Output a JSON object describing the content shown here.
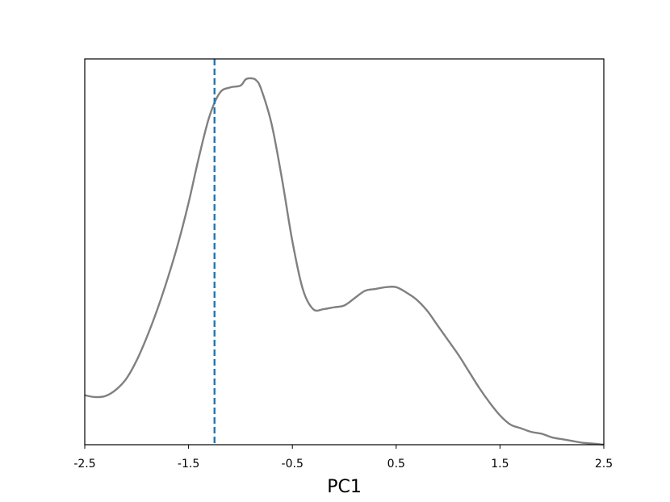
{
  "chart_data": {
    "type": "line",
    "title": "",
    "xlabel": "PC1",
    "ylabel": "",
    "xlim": [
      -2.5,
      2.5
    ],
    "ylim": [
      0,
      1.0
    ],
    "x_ticks": [
      -2.5,
      -1.5,
      -0.5,
      0.5,
      1.5,
      2.5
    ],
    "x_tick_labels": [
      "-2.5",
      "-1.5",
      "-0.5",
      "0.5",
      "1.5",
      "2.5"
    ],
    "y_ticks_visible": false,
    "grid": false,
    "series": [
      {
        "color": "#808080",
        "style": "solid",
        "x": [
          -2.5,
          -2.4,
          -2.3,
          -2.2,
          -2.1,
          -2.0,
          -1.9,
          -1.8,
          -1.7,
          -1.6,
          -1.5,
          -1.4,
          -1.3,
          -1.2,
          -1.1,
          -1.0,
          -0.95,
          -0.9,
          -0.85,
          -0.8,
          -0.7,
          -0.6,
          -0.5,
          -0.4,
          -0.3,
          -0.2,
          -0.1,
          0.0,
          0.1,
          0.2,
          0.3,
          0.4,
          0.5,
          0.6,
          0.7,
          0.8,
          0.9,
          1.0,
          1.1,
          1.2,
          1.3,
          1.4,
          1.5,
          1.6,
          1.7,
          1.8,
          1.9,
          2.0,
          2.1,
          2.2,
          2.3,
          2.4,
          2.5
        ],
        "y": [
          0.135,
          0.13,
          0.133,
          0.15,
          0.18,
          0.23,
          0.295,
          0.37,
          0.455,
          0.55,
          0.66,
          0.785,
          0.895,
          0.96,
          0.975,
          0.98,
          0.997,
          1.0,
          0.995,
          0.97,
          0.875,
          0.725,
          0.555,
          0.425,
          0.37,
          0.37,
          0.375,
          0.38,
          0.4,
          0.42,
          0.425,
          0.43,
          0.43,
          0.415,
          0.395,
          0.365,
          0.325,
          0.285,
          0.245,
          0.2,
          0.155,
          0.115,
          0.08,
          0.055,
          0.045,
          0.035,
          0.03,
          0.02,
          0.015,
          0.01,
          0.005,
          0.003,
          0.0
        ]
      }
    ],
    "vlines": [
      {
        "x": -1.25,
        "color": "#1f77b4",
        "style": "dashed"
      }
    ]
  }
}
